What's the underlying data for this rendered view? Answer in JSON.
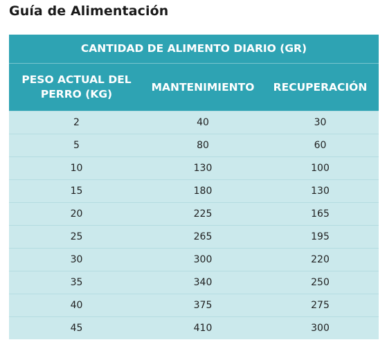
{
  "title": "Guía de Alimentación",
  "table": {
    "group_header": "CANTIDAD DE ALIMENTO DIARIO (GR)",
    "columns": [
      "PESO ACTUAL DEL PERRO (KG)",
      "MANTENIMIENTO",
      "RECUPERACIÓN"
    ],
    "rows": [
      [
        "2",
        "40",
        "30"
      ],
      [
        "5",
        "80",
        "60"
      ],
      [
        "10",
        "130",
        "100"
      ],
      [
        "15",
        "180",
        "130"
      ],
      [
        "20",
        "225",
        "165"
      ],
      [
        "25",
        "265",
        "195"
      ],
      [
        "30",
        "300",
        "220"
      ],
      [
        "35",
        "340",
        "250"
      ],
      [
        "40",
        "375",
        "275"
      ],
      [
        "45",
        "410",
        "300"
      ]
    ]
  },
  "colors": {
    "header_bg": "#2ea3b3",
    "row_bg": "#cbe9ec",
    "header_text": "#ffffff"
  }
}
